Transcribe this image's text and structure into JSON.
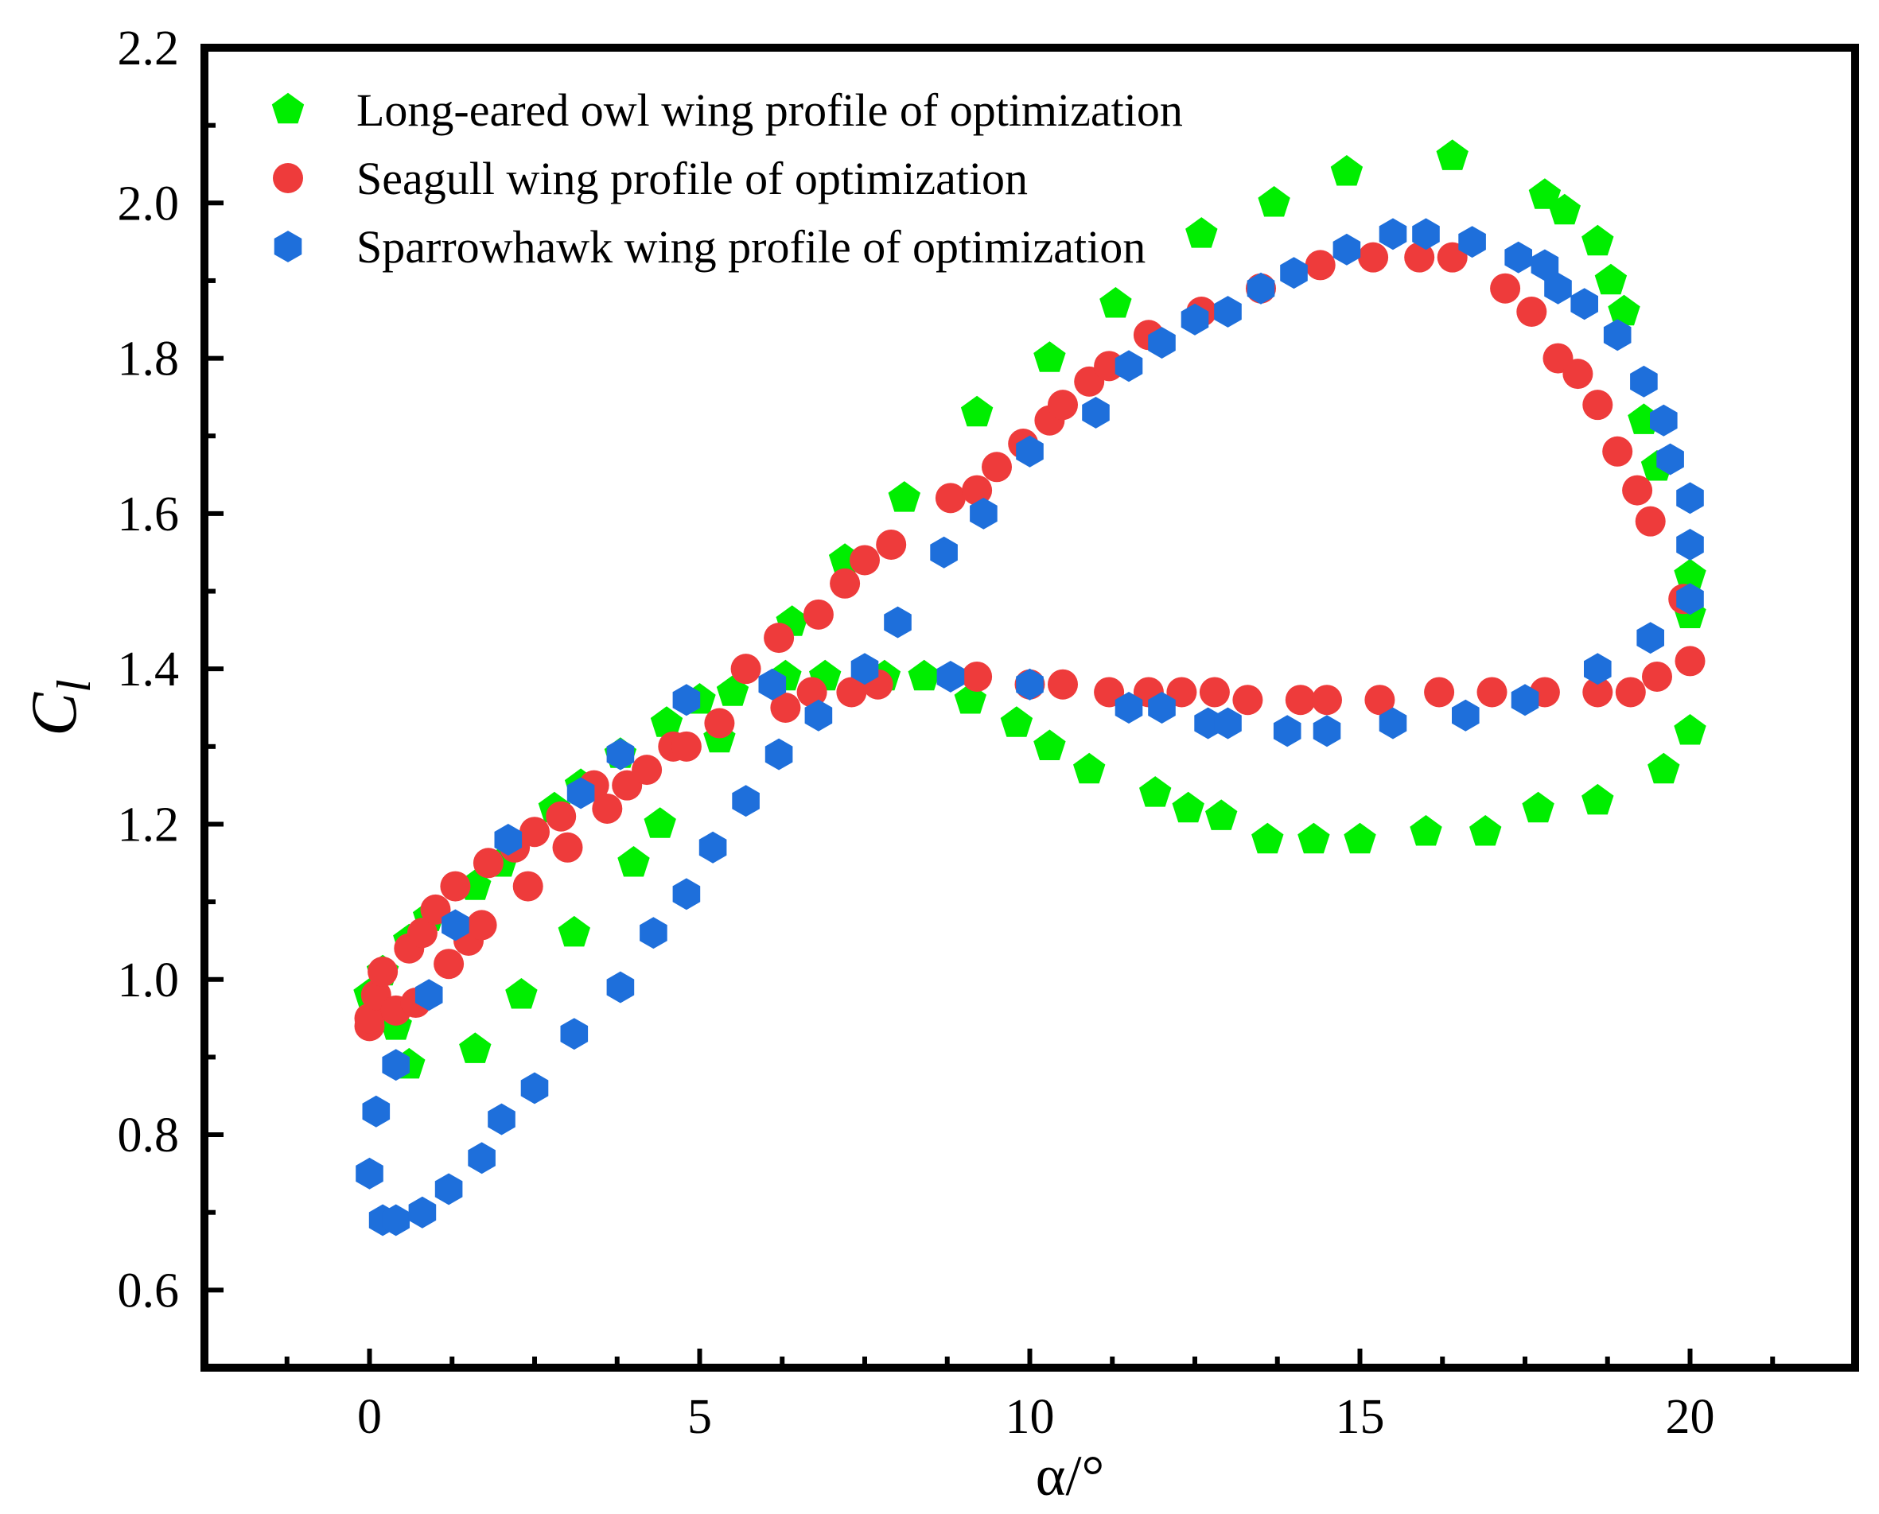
{
  "chart_data": {
    "type": "scatter",
    "title": "",
    "xlabel": "α/°",
    "ylabel": {
      "main": "C",
      "sub": "l"
    },
    "xlim": [
      -2.5,
      22.5
    ],
    "ylim": [
      0.5,
      2.2
    ],
    "xticks": [
      0,
      5,
      10,
      15,
      20
    ],
    "yticks": [
      0.6,
      0.8,
      1.0,
      1.2,
      1.4,
      1.6,
      1.8,
      2.0,
      2.2
    ],
    "x_tick_labels": [
      "0",
      "5",
      "10",
      "15",
      "20"
    ],
    "y_tick_labels": [
      "0.6",
      "0.8",
      "1.0",
      "1.2",
      "1.4",
      "1.6",
      "1.8",
      "2.0",
      "2.2"
    ],
    "grid": false,
    "legend_position": "top-left",
    "series": [
      {
        "name": "Long-eared owl wing profile of optimization",
        "marker": "pentagon",
        "color": "#00ee00",
        "points": [
          [
            0.0,
            0.98
          ],
          [
            0.2,
            1.01
          ],
          [
            0.4,
            0.94
          ],
          [
            0.6,
            0.89
          ],
          [
            0.6,
            1.05
          ],
          [
            0.9,
            1.08
          ],
          [
            1.6,
            0.91
          ],
          [
            1.6,
            1.12
          ],
          [
            2.0,
            1.15
          ],
          [
            2.3,
            0.98
          ],
          [
            2.8,
            1.22
          ],
          [
            3.1,
            1.06
          ],
          [
            3.2,
            1.25
          ],
          [
            3.8,
            1.29
          ],
          [
            4.0,
            1.15
          ],
          [
            4.4,
            1.2
          ],
          [
            4.5,
            1.33
          ],
          [
            5.0,
            1.36
          ],
          [
            5.3,
            1.31
          ],
          [
            5.5,
            1.37
          ],
          [
            6.3,
            1.39
          ],
          [
            6.4,
            1.46
          ],
          [
            6.9,
            1.39
          ],
          [
            7.2,
            1.54
          ],
          [
            7.8,
            1.39
          ],
          [
            8.1,
            1.62
          ],
          [
            8.4,
            1.39
          ],
          [
            9.1,
            1.36
          ],
          [
            9.2,
            1.73
          ],
          [
            9.8,
            1.33
          ],
          [
            10.3,
            1.3
          ],
          [
            10.3,
            1.8
          ],
          [
            10.9,
            1.27
          ],
          [
            11.3,
            1.87
          ],
          [
            11.9,
            1.24
          ],
          [
            12.4,
            1.22
          ],
          [
            12.6,
            1.96
          ],
          [
            12.9,
            1.21
          ],
          [
            13.6,
            1.18
          ],
          [
            13.7,
            2.0
          ],
          [
            14.3,
            1.18
          ],
          [
            14.8,
            2.04
          ],
          [
            15.0,
            1.18
          ],
          [
            16.0,
            1.19
          ],
          [
            16.4,
            2.06
          ],
          [
            16.9,
            1.19
          ],
          [
            17.7,
            1.22
          ],
          [
            17.8,
            2.01
          ],
          [
            18.1,
            1.99
          ],
          [
            18.6,
            1.23
          ],
          [
            18.6,
            1.95
          ],
          [
            18.8,
            1.9
          ],
          [
            19.0,
            1.86
          ],
          [
            19.3,
            1.72
          ],
          [
            19.5,
            1.66
          ],
          [
            19.6,
            1.27
          ],
          [
            20.0,
            1.47
          ],
          [
            20.0,
            1.52
          ],
          [
            20.0,
            1.32
          ]
        ]
      },
      {
        "name": "Seagull wing profile of optimization",
        "marker": "circle",
        "color": "#ee3b3b",
        "points": [
          [
            0.0,
            0.94
          ],
          [
            0.0,
            0.95
          ],
          [
            0.1,
            0.98
          ],
          [
            0.2,
            1.01
          ],
          [
            0.4,
            0.96
          ],
          [
            0.6,
            1.04
          ],
          [
            0.7,
            0.97
          ],
          [
            0.8,
            1.06
          ],
          [
            1.0,
            1.09
          ],
          [
            1.2,
            1.02
          ],
          [
            1.3,
            1.12
          ],
          [
            1.5,
            1.05
          ],
          [
            1.7,
            1.07
          ],
          [
            1.8,
            1.15
          ],
          [
            2.2,
            1.17
          ],
          [
            2.4,
            1.12
          ],
          [
            2.5,
            1.19
          ],
          [
            2.9,
            1.21
          ],
          [
            3.0,
            1.17
          ],
          [
            3.4,
            1.25
          ],
          [
            3.6,
            1.22
          ],
          [
            3.9,
            1.25
          ],
          [
            4.2,
            1.27
          ],
          [
            4.6,
            1.3
          ],
          [
            4.8,
            1.3
          ],
          [
            5.3,
            1.33
          ],
          [
            5.7,
            1.4
          ],
          [
            6.2,
            1.44
          ],
          [
            6.3,
            1.35
          ],
          [
            6.7,
            1.37
          ],
          [
            6.8,
            1.47
          ],
          [
            7.2,
            1.51
          ],
          [
            7.3,
            1.37
          ],
          [
            7.5,
            1.54
          ],
          [
            7.7,
            1.38
          ],
          [
            7.9,
            1.56
          ],
          [
            8.8,
            1.62
          ],
          [
            9.2,
            1.63
          ],
          [
            9.2,
            1.39
          ],
          [
            9.5,
            1.66
          ],
          [
            9.9,
            1.69
          ],
          [
            10.0,
            1.38
          ],
          [
            10.3,
            1.72
          ],
          [
            10.5,
            1.74
          ],
          [
            10.5,
            1.38
          ],
          [
            10.9,
            1.77
          ],
          [
            11.2,
            1.79
          ],
          [
            11.2,
            1.37
          ],
          [
            11.8,
            1.83
          ],
          [
            11.8,
            1.37
          ],
          [
            12.3,
            1.37
          ],
          [
            12.6,
            1.86
          ],
          [
            12.8,
            1.37
          ],
          [
            13.3,
            1.36
          ],
          [
            13.5,
            1.89
          ],
          [
            14.1,
            1.36
          ],
          [
            14.4,
            1.92
          ],
          [
            14.5,
            1.36
          ],
          [
            15.2,
            1.93
          ],
          [
            15.3,
            1.36
          ],
          [
            15.9,
            1.93
          ],
          [
            16.2,
            1.37
          ],
          [
            16.4,
            1.93
          ],
          [
            17.0,
            1.37
          ],
          [
            17.2,
            1.89
          ],
          [
            17.6,
            1.86
          ],
          [
            17.8,
            1.37
          ],
          [
            18.0,
            1.8
          ],
          [
            18.3,
            1.78
          ],
          [
            18.6,
            1.74
          ],
          [
            18.6,
            1.37
          ],
          [
            18.9,
            1.68
          ],
          [
            19.1,
            1.37
          ],
          [
            19.2,
            1.63
          ],
          [
            19.4,
            1.59
          ],
          [
            19.5,
            1.39
          ],
          [
            19.9,
            1.49
          ],
          [
            20.0,
            1.41
          ]
        ]
      },
      {
        "name": "Sparrowhawk wing profile of optimization",
        "marker": "hexagon",
        "color": "#1e6fdb",
        "points": [
          [
            0.0,
            0.75
          ],
          [
            0.1,
            0.83
          ],
          [
            0.2,
            0.69
          ],
          [
            0.4,
            0.69
          ],
          [
            0.4,
            0.89
          ],
          [
            0.8,
            0.7
          ],
          [
            0.9,
            0.98
          ],
          [
            1.2,
            0.73
          ],
          [
            1.3,
            1.07
          ],
          [
            1.7,
            0.77
          ],
          [
            2.0,
            0.82
          ],
          [
            2.1,
            1.18
          ],
          [
            2.5,
            0.86
          ],
          [
            3.1,
            0.93
          ],
          [
            3.2,
            1.24
          ],
          [
            3.8,
            0.99
          ],
          [
            3.8,
            1.29
          ],
          [
            4.3,
            1.06
          ],
          [
            4.8,
            1.11
          ],
          [
            4.8,
            1.36
          ],
          [
            5.2,
            1.17
          ],
          [
            5.7,
            1.23
          ],
          [
            6.1,
            1.38
          ],
          [
            6.2,
            1.29
          ],
          [
            6.8,
            1.34
          ],
          [
            7.5,
            1.4
          ],
          [
            8.0,
            1.46
          ],
          [
            8.7,
            1.55
          ],
          [
            8.8,
            1.39
          ],
          [
            9.3,
            1.6
          ],
          [
            10.0,
            1.38
          ],
          [
            10.0,
            1.68
          ],
          [
            11.0,
            1.73
          ],
          [
            11.5,
            1.35
          ],
          [
            11.5,
            1.79
          ],
          [
            12.0,
            1.82
          ],
          [
            12.0,
            1.35
          ],
          [
            12.5,
            1.85
          ],
          [
            12.7,
            1.33
          ],
          [
            13.0,
            1.86
          ],
          [
            13.0,
            1.33
          ],
          [
            13.5,
            1.89
          ],
          [
            13.9,
            1.32
          ],
          [
            14.0,
            1.91
          ],
          [
            14.5,
            1.32
          ],
          [
            14.8,
            1.94
          ],
          [
            15.5,
            1.96
          ],
          [
            15.5,
            1.33
          ],
          [
            16.0,
            1.96
          ],
          [
            16.6,
            1.34
          ],
          [
            16.7,
            1.95
          ],
          [
            17.4,
            1.93
          ],
          [
            17.5,
            1.36
          ],
          [
            17.8,
            1.92
          ],
          [
            18.0,
            1.89
          ],
          [
            18.4,
            1.87
          ],
          [
            18.6,
            1.4
          ],
          [
            18.9,
            1.83
          ],
          [
            19.3,
            1.77
          ],
          [
            19.4,
            1.44
          ],
          [
            19.6,
            1.72
          ],
          [
            19.7,
            1.67
          ],
          [
            20.0,
            1.62
          ],
          [
            20.0,
            1.56
          ],
          [
            20.0,
            1.49
          ]
        ]
      }
    ]
  }
}
